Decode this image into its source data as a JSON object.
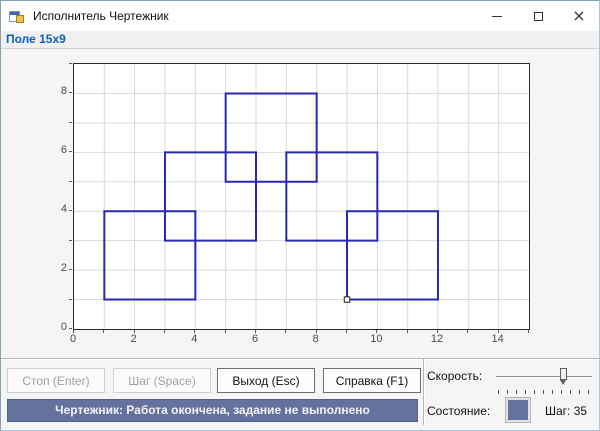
{
  "window": {
    "title": "Исполнитель Чертежник"
  },
  "field_label": "Поле 15x9",
  "chart_data": {
    "type": "line",
    "title": "",
    "xlabel": "",
    "ylabel": "",
    "xlim": [
      0,
      15
    ],
    "ylim": [
      0,
      9
    ],
    "x_tick_labels": [
      0,
      2,
      4,
      6,
      8,
      10,
      12,
      14
    ],
    "y_tick_labels": [
      0,
      2,
      4,
      6,
      8
    ],
    "grid": true,
    "grid_color": "#dadada",
    "draw_color": "#2828b0",
    "squares": [
      {
        "x": 1,
        "y": 1,
        "size": 3
      },
      {
        "x": 3,
        "y": 3,
        "size": 3
      },
      {
        "x": 5,
        "y": 5,
        "size": 3
      },
      {
        "x": 7,
        "y": 3,
        "size": 3
      },
      {
        "x": 9,
        "y": 1,
        "size": 3
      }
    ],
    "pen_position": {
      "x": 9,
      "y": 1
    }
  },
  "toolbar": {
    "stop": {
      "label": "Стоп (Enter)",
      "enabled": false
    },
    "step": {
      "label": "Шаг (Space)",
      "enabled": false
    },
    "exit": {
      "label": "Выход (Esc)",
      "enabled": true
    },
    "help": {
      "label": "Справка (F1)",
      "enabled": true
    }
  },
  "status_bar": {
    "text": "Чертежник: Работа окончена, задание не выполнено",
    "color": "#66729e"
  },
  "right_panel": {
    "speed_label": "Скорость:",
    "speed_slider": {
      "percent": 72,
      "ticks": 11
    },
    "state_label": "Состояние:",
    "state_color": "#66729e",
    "step_label": "Шаг:",
    "step_value": "35"
  }
}
